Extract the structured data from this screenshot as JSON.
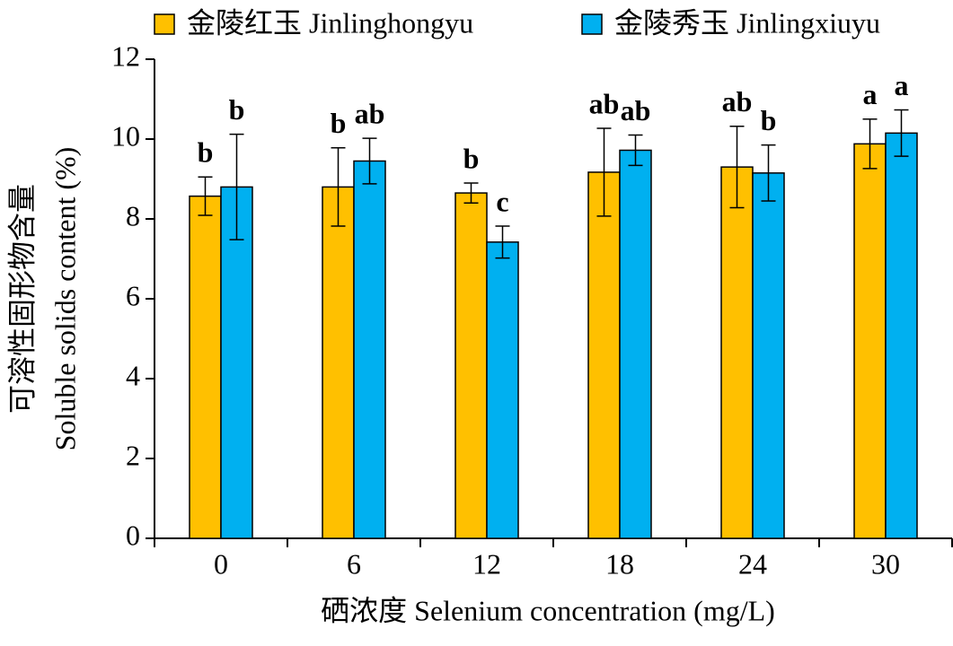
{
  "chart_data": {
    "type": "bar",
    "x_label": "硒浓度 Selenium concentration (mg/L)",
    "y_label": [
      "可溶性固形物含量",
      "Soluble solids content (%)"
    ],
    "categories": [
      "0",
      "6",
      "12",
      "18",
      "24",
      "30"
    ],
    "series": [
      {
        "name": "金陵红玉 Jinlinghongyu",
        "color": "#FFC000",
        "values": [
          8.57,
          8.8,
          8.65,
          9.17,
          9.3,
          9.88
        ],
        "errors": [
          0.48,
          0.98,
          0.25,
          1.1,
          1.02,
          0.62
        ],
        "letters": [
          "b",
          "b",
          "b",
          "ab",
          "ab",
          "a"
        ]
      },
      {
        "name": "金陵秀玉 Jinlingxiuyu",
        "color": "#00B0F0",
        "values": [
          8.8,
          9.45,
          7.42,
          9.72,
          9.15,
          10.15
        ],
        "errors": [
          1.32,
          0.57,
          0.4,
          0.38,
          0.7,
          0.58
        ],
        "letters": [
          "b",
          "ab",
          "c",
          "ab",
          "b",
          "a"
        ]
      }
    ],
    "ylim": [
      0,
      12
    ],
    "yticks": [
      0,
      2,
      4,
      6,
      8,
      10,
      12
    ],
    "legend": "top"
  }
}
